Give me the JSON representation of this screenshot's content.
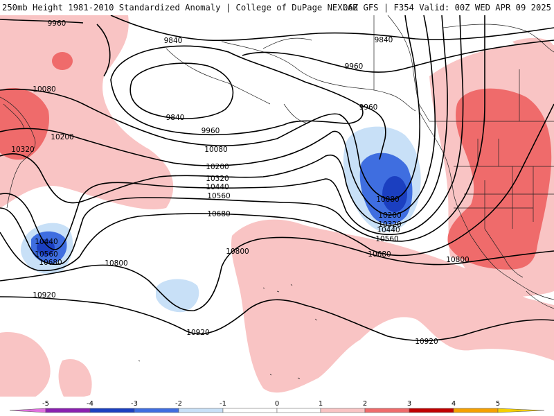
{
  "header": {
    "left_title": "250mb Height 1981-2010 Standardized Anomaly | College of DuPage NEXLAB",
    "right_title": "06Z GFS | F354 Valid: 00Z WED APR 09 2025"
  },
  "map": {
    "contour_labels": {
      "c9960_a": "9960",
      "c9840_a": "9840",
      "c9840_b": "9840",
      "c9840_c": "9840",
      "c9960_b": "9960",
      "c9960_c": "9960",
      "c9960_d": "9960",
      "c10080_a": "10080",
      "c10080_b": "10080",
      "c10080_c": "10080",
      "c10200_a": "10200",
      "c10200_b": "10200",
      "c10200_c": "10200",
      "c10320_a": "10320",
      "c10320_b": "10320",
      "c10320_c": "10320",
      "c10440_a": "10440",
      "c10440_b": "10440",
      "c10440_c": "10440",
      "c10560_a": "10560",
      "c10560_b": "10560",
      "c10560_c": "10560",
      "c10680_a": "10680",
      "c10680_b": "10680",
      "c10680_c": "10680",
      "c10800_a": "10800",
      "c10800_b": "10800",
      "c10800_c": "10800",
      "c10920_a": "10920",
      "c10920_b": "10920",
      "c10920_c": "10920"
    },
    "anomaly_colors": {
      "pos_1_2": "#f9c4c4",
      "pos_2_3": "#ef6b6b",
      "neg_1_2": "#c8e0f7",
      "neg_2_3": "#3f6ee0",
      "neg_3_4": "#1b3fc0"
    }
  },
  "colorbar": {
    "ticks": [
      "-5",
      "-4",
      "-3",
      "-2",
      "-1",
      "0",
      "1",
      "2",
      "3",
      "4",
      "5"
    ],
    "colors": [
      "#8a1fb0",
      "#1b3fc0",
      "#3f6ee0",
      "#c8e0f7",
      "#ffffff",
      "#ffffff",
      "#f9c4c4",
      "#ef6b6b",
      "#c00000",
      "#f5a000"
    ]
  }
}
